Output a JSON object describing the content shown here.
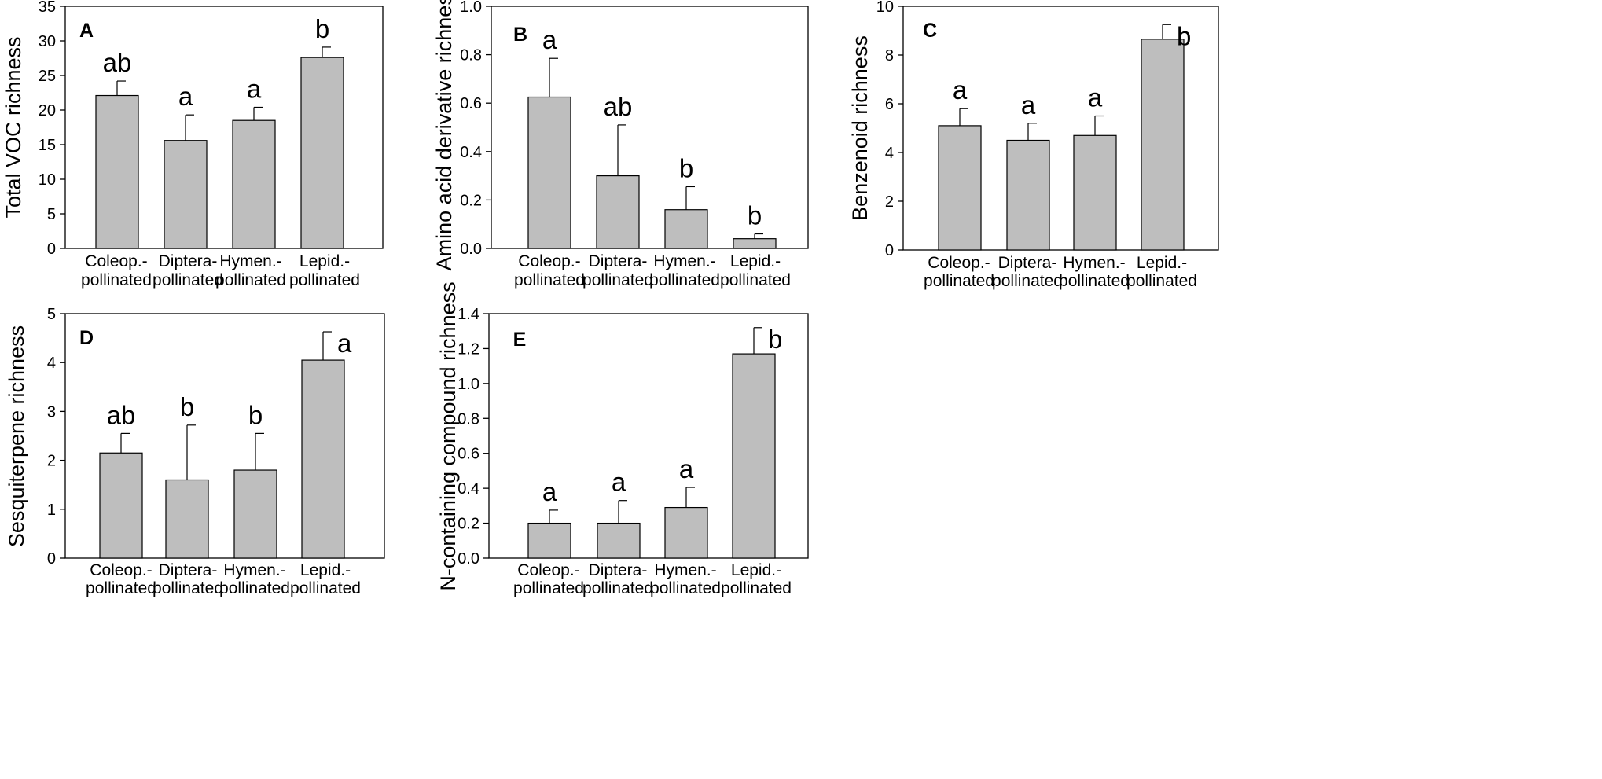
{
  "chart_data": [
    {
      "type": "bar",
      "panel_label": "A",
      "ylabel": "Total VOC richness",
      "ylim": [
        0,
        35
      ],
      "yticks": [
        "0",
        "5",
        "10",
        "15",
        "20",
        "25",
        "30",
        "35"
      ],
      "categories": [
        [
          "Coleop.-",
          "pollinated"
        ],
        [
          "Diptera-",
          "pollinated"
        ],
        [
          "Hymen.-",
          "pollinated"
        ],
        [
          "Lepid.-",
          "pollinated"
        ]
      ],
      "values": [
        22.1,
        15.6,
        18.5,
        27.6
      ],
      "errors": [
        2.1,
        3.7,
        1.9,
        1.5
      ],
      "significance": [
        "ab",
        "a",
        "a",
        "b"
      ]
    },
    {
      "type": "bar",
      "panel_label": "B",
      "ylabel": "Amino acid derivative richness",
      "ylim": [
        0,
        1.0
      ],
      "yticks": [
        "0.0",
        "0.2",
        "0.4",
        "0.6",
        "0.8",
        "1.0"
      ],
      "categories": [
        [
          "Coleop.-",
          "pollinated"
        ],
        [
          "Diptera-",
          "pollinated"
        ],
        [
          "Hymen.-",
          "pollinated"
        ],
        [
          "Lepid.-",
          "pollinated"
        ]
      ],
      "values": [
        0.625,
        0.3,
        0.16,
        0.04
      ],
      "errors": [
        0.16,
        0.21,
        0.095,
        0.02
      ],
      "significance": [
        "a",
        "ab",
        "b",
        "b"
      ]
    },
    {
      "type": "bar",
      "panel_label": "C",
      "ylabel": "Benzenoid richness",
      "ylim": [
        0,
        10
      ],
      "yticks": [
        "0",
        "2",
        "4",
        "6",
        "8",
        "10"
      ],
      "categories": [
        [
          "Coleop.-",
          "pollinated"
        ],
        [
          "Diptera-",
          "pollinated"
        ],
        [
          "Hymen.-",
          "pollinated"
        ],
        [
          "Lepid.-",
          "pollinated"
        ]
      ],
      "values": [
        5.1,
        4.5,
        4.7,
        8.65
      ],
      "errors": [
        0.7,
        0.7,
        0.8,
        0.6
      ],
      "significance": [
        "a",
        "a",
        "a",
        "b"
      ]
    },
    {
      "type": "bar",
      "panel_label": "D",
      "ylabel": "Sesquiterpene richness",
      "ylim": [
        0,
        5
      ],
      "yticks": [
        "0",
        "1",
        "2",
        "3",
        "4",
        "5"
      ],
      "categories": [
        [
          "Coleop.-",
          "pollinated"
        ],
        [
          "Diptera-",
          "pollinated"
        ],
        [
          "Hymen.-",
          "pollinated"
        ],
        [
          "Lepid.-",
          "pollinated"
        ]
      ],
      "values": [
        2.15,
        1.6,
        1.8,
        4.05
      ],
      "errors": [
        0.4,
        1.12,
        0.75,
        0.58
      ],
      "significance": [
        "ab",
        "b",
        "b",
        "a"
      ]
    },
    {
      "type": "bar",
      "panel_label": "E",
      "ylabel": "N-containing compound richness",
      "ylim": [
        0,
        1.4
      ],
      "yticks": [
        "0.0",
        "0.2",
        "0.4",
        "0.6",
        "0.8",
        "1.0",
        "1.2",
        "1.4"
      ],
      "categories": [
        [
          "Coleop.-",
          "pollinated"
        ],
        [
          "Diptera-",
          "pollinated"
        ],
        [
          "Hymen.-",
          "pollinated"
        ],
        [
          "Lepid.-",
          "pollinated"
        ]
      ],
      "values": [
        0.2,
        0.2,
        0.29,
        1.17
      ],
      "errors": [
        0.075,
        0.13,
        0.115,
        0.15
      ],
      "significance": [
        "a",
        "a",
        "a",
        "b"
      ]
    }
  ]
}
